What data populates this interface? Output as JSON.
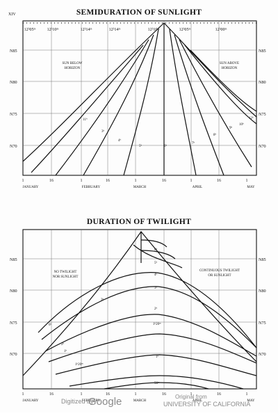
{
  "page": {
    "number": "XIV",
    "watermark_left_prefix": "Digitized by",
    "watermark_left_brand": "Google",
    "watermark_right_line1": "Original from",
    "watermark_right_line2": "UNIVERSITY OF CALIFORNIA"
  },
  "sunlight_chart": {
    "title": "SEMIDURATION OF SUNLIGHT",
    "top_labels": [
      "12ʰ05ᵐ",
      "12ʰ10ᵐ",
      "12ʰ14ᵐ",
      "12ʰ14ᵐ",
      "12ʰ10ᵐ",
      "12ʰ05ᵐ",
      "12ʰ00ᵐ"
    ],
    "lat_labels_left": [
      "N85",
      "N80",
      "N75",
      "N70"
    ],
    "lat_labels_right": [
      "N85",
      "N80",
      "N75",
      "N70"
    ],
    "region_left": [
      "SUN BELOW",
      "HORIZON"
    ],
    "region_right": [
      "SUN ABOVE",
      "HORIZON"
    ],
    "curve_labels": [
      "11ʰ",
      "12ʰ",
      "10ʰ",
      "3ʰ",
      "4ʰ",
      "5ʰ",
      "6ʰ",
      "7ʰ",
      "8ʰ",
      "9ʰ"
    ],
    "x_ticks": [
      "1",
      "16",
      "1",
      "16",
      "1",
      "16",
      "1",
      "16",
      "1"
    ],
    "months": [
      "JANUARY",
      "FEBRUARY",
      "MARCH",
      "APRIL",
      "MAY"
    ]
  },
  "twilight_chart": {
    "title": "DURATION OF TWILIGHT",
    "lat_labels_left": [
      "N85",
      "N80",
      "N75",
      "N70"
    ],
    "lat_labels_right": [
      "N85",
      "N80",
      "N75",
      "N70"
    ],
    "region_left": [
      "NO TWILIGHT",
      "NOR SUNLIGHT"
    ],
    "region_right": [
      "CONTINUOUS TWILIGHT",
      "OR SUNLIGHT"
    ],
    "curve_labels": [
      "6ʰ",
      "5ʰ",
      "4ʰ",
      "3ʰ",
      "2ʰ",
      "1ʰ20ᵐ",
      "1ʰ",
      "50ᵐ",
      "3ʰ",
      "2ʰ",
      "1ʰ",
      "1ʰ20ᵐ",
      "6ʰ"
    ],
    "x_ticks": [
      "1",
      "16",
      "1",
      "16",
      "1",
      "16",
      "1",
      "16",
      "1"
    ],
    "months": [
      "JANUARY",
      "FEBRUARY",
      "MARCH",
      "APRIL",
      "MAY"
    ]
  }
}
